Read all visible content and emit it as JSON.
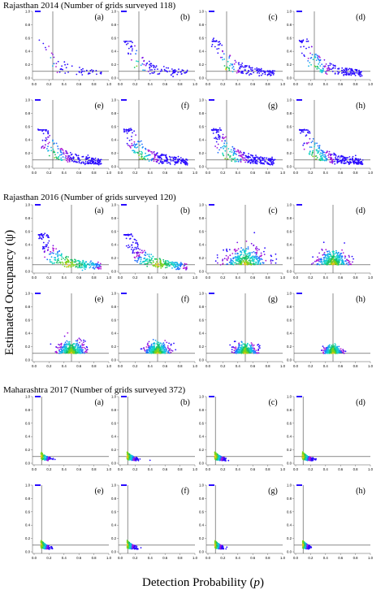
{
  "figure": {
    "ylabel": "Estimated Occupancy (ψ)",
    "xlabel_text": "Detection Probability (",
    "xlabel_var": "p",
    "xlabel_close": ")"
  },
  "colors": {
    "palette": [
      "#2a0cff",
      "#7a10e6",
      "#b01ad6",
      "#1f6fff",
      "#17b5e8",
      "#13d6c2",
      "#19c26a",
      "#7bd21a",
      "#e8c21a",
      "#f08a1a"
    ],
    "axis": "#555555",
    "guide": "#444444"
  },
  "chart_data": [
    {
      "title": "Rajasthan 2014 (Number of grids surveyed 118)",
      "type": "scatter",
      "xlim": [
        0,
        1
      ],
      "ylim": [
        0,
        1
      ],
      "xticks": [
        "0.0",
        "0.2",
        "0.4",
        "0.6",
        "0.8",
        "1.0"
      ],
      "yticks": [
        "0.0",
        "0.2",
        "0.4",
        "0.6",
        "0.8",
        "1.0"
      ],
      "panels": [
        {
          "label": "(a)",
          "vline": 0.25,
          "hline": 0.1,
          "center_p": 0.2,
          "spread": 0.05,
          "shape": "tail",
          "n": 55
        },
        {
          "label": "(b)",
          "vline": 0.25,
          "hline": 0.1,
          "center_p": 0.22,
          "spread": 0.06,
          "shape": "tail",
          "n": 110
        },
        {
          "label": "(c)",
          "vline": 0.25,
          "hline": 0.1,
          "center_p": 0.24,
          "spread": 0.07,
          "shape": "tail",
          "n": 160
        },
        {
          "label": "(d)",
          "vline": 0.25,
          "hline": 0.1,
          "center_p": 0.25,
          "spread": 0.08,
          "shape": "tail",
          "n": 200
        },
        {
          "label": "(e)",
          "vline": 0.25,
          "hline": 0.1,
          "center_p": 0.25,
          "spread": 0.09,
          "shape": "tail",
          "n": 230
        },
        {
          "label": "(f)",
          "vline": 0.25,
          "hline": 0.1,
          "center_p": 0.25,
          "spread": 0.1,
          "shape": "tail",
          "n": 250
        },
        {
          "label": "(g)",
          "vline": 0.25,
          "hline": 0.1,
          "center_p": 0.25,
          "spread": 0.1,
          "shape": "tail",
          "n": 270
        },
        {
          "label": "(h)",
          "vline": 0.25,
          "hline": 0.1,
          "center_p": 0.25,
          "spread": 0.1,
          "shape": "tail",
          "n": 290
        }
      ]
    },
    {
      "title": "Rajasthan 2016 (Number of grids surveyed 120)",
      "type": "scatter",
      "xlim": [
        0,
        1
      ],
      "ylim": [
        0,
        1
      ],
      "xticks": [
        "0.0",
        "0.2",
        "0.4",
        "0.6",
        "0.8",
        "1.0"
      ],
      "yticks": [
        "0.0",
        "0.2",
        "0.4",
        "0.6",
        "0.8",
        "1.0"
      ],
      "panels": [
        {
          "label": "(a)",
          "vline": 0.5,
          "hline": 0.1,
          "center_p": 0.45,
          "spread": 0.22,
          "shape": "tail",
          "n": 260
        },
        {
          "label": "(b)",
          "vline": 0.5,
          "hline": 0.1,
          "center_p": 0.5,
          "spread": 0.18,
          "shape": "tail",
          "n": 280
        },
        {
          "label": "(c)",
          "vline": 0.5,
          "hline": 0.1,
          "center_p": 0.5,
          "spread": 0.14,
          "shape": "blob",
          "n": 300
        },
        {
          "label": "(d)",
          "vline": 0.5,
          "hline": 0.1,
          "center_p": 0.5,
          "spread": 0.11,
          "shape": "blob",
          "n": 300
        },
        {
          "label": "(e)",
          "vline": 0.5,
          "hline": 0.1,
          "center_p": 0.5,
          "spread": 0.09,
          "shape": "blob",
          "n": 320
        },
        {
          "label": "(f)",
          "vline": 0.5,
          "hline": 0.1,
          "center_p": 0.5,
          "spread": 0.08,
          "shape": "blob",
          "n": 320
        },
        {
          "label": "(g)",
          "vline": 0.5,
          "hline": 0.1,
          "center_p": 0.5,
          "spread": 0.07,
          "shape": "blob",
          "n": 320
        },
        {
          "label": "(h)",
          "vline": 0.5,
          "hline": 0.1,
          "center_p": 0.5,
          "spread": 0.06,
          "shape": "blob",
          "n": 320
        }
      ]
    },
    {
      "title": "Maharashtra 2017 (Number of grids surveyed 372)",
      "type": "scatter",
      "xlim": [
        0,
        1
      ],
      "ylim": [
        0,
        1
      ],
      "xticks": [
        "0.0",
        "0.2",
        "0.4",
        "0.6",
        "0.8",
        "1.0"
      ],
      "yticks": [
        "0.0",
        "0.2",
        "0.4",
        "0.6",
        "0.8",
        "1.0"
      ],
      "panels": [
        {
          "label": "(a)",
          "vline": 0.1,
          "hline": 0.1,
          "center_p": 0.1,
          "spread": 0.04,
          "shape": "steep",
          "n": 90
        },
        {
          "label": "(b)",
          "vline": 0.1,
          "hline": 0.1,
          "center_p": 0.1,
          "spread": 0.04,
          "shape": "steep",
          "n": 200
        },
        {
          "label": "(c)",
          "vline": 0.1,
          "hline": 0.1,
          "center_p": 0.1,
          "spread": 0.04,
          "shape": "steep",
          "n": 260
        },
        {
          "label": "(d)",
          "vline": 0.1,
          "hline": 0.1,
          "center_p": 0.1,
          "spread": 0.04,
          "shape": "steep",
          "n": 300
        },
        {
          "label": "(e)",
          "vline": 0.1,
          "hline": 0.1,
          "center_p": 0.1,
          "spread": 0.035,
          "shape": "steep",
          "n": 320
        },
        {
          "label": "(f)",
          "vline": 0.1,
          "hline": 0.1,
          "center_p": 0.1,
          "spread": 0.03,
          "shape": "steep",
          "n": 320
        },
        {
          "label": "(g)",
          "vline": 0.1,
          "hline": 0.1,
          "center_p": 0.1,
          "spread": 0.03,
          "shape": "steep",
          "n": 320
        },
        {
          "label": "(h)",
          "vline": 0.1,
          "hline": 0.1,
          "center_p": 0.1,
          "spread": 0.025,
          "shape": "steep",
          "n": 320
        }
      ]
    }
  ]
}
